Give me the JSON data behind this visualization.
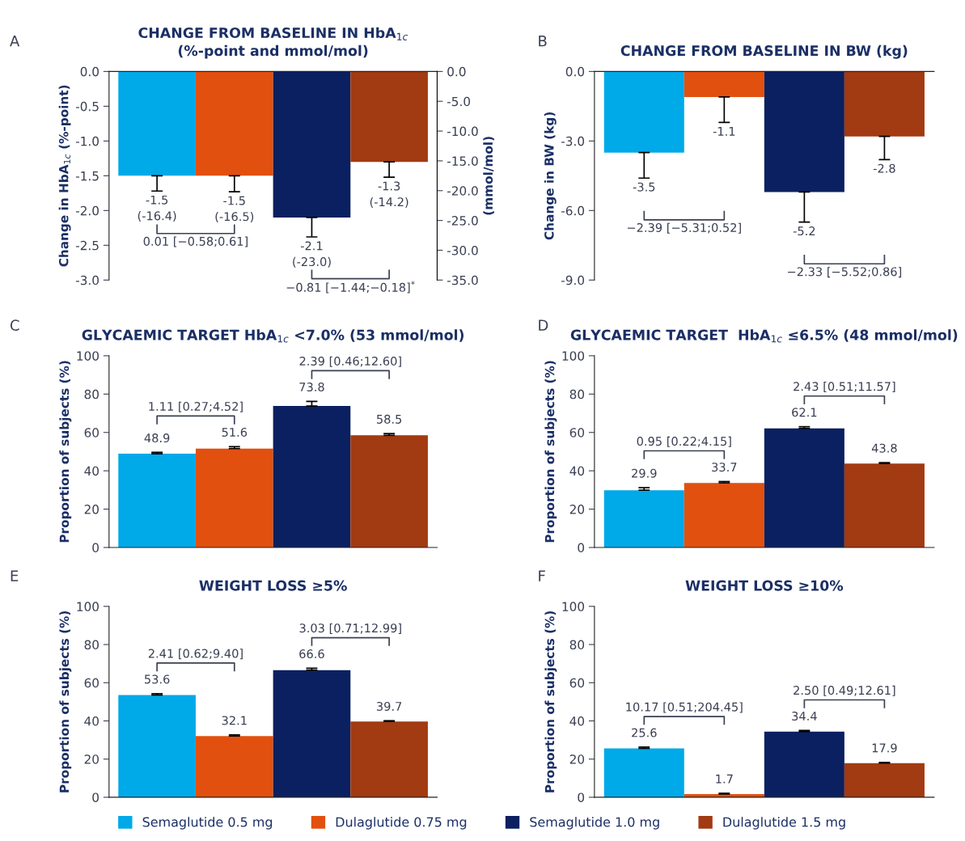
{
  "chart_data": [
    {
      "type": "bar",
      "title": "CHANGE FROM BASELINE IN HbA$_{1c}$\n(%-point and mmol/mol)",
      "ylabel": "Change in HbA$_{1c}$ (%-point)",
      "y2label": "(mmol/mol)",
      "categories": [
        null
      ],
      "series": [
        {
          "name": "Semaglutide 0.5 mg",
          "color": "#00a9e8",
          "values": [
            -1.5
          ],
          "errors": [
            [
              -1.72,
              -1.5
            ]
          ],
          "value_labels": [
            "-1.5\n(-16.4)"
          ]
        },
        {
          "name": "Dulaglutide 0.75 mg",
          "color": "#e2500f",
          "values": [
            -1.5
          ],
          "errors": [
            [
              -1.73,
              -1.5
            ]
          ],
          "value_labels": [
            "-1.5\n(-16.5)"
          ]
        },
        {
          "name": "Semaglutide 1.0 mg",
          "color": "#0b2060",
          "values": [
            -2.1
          ],
          "errors": [
            [
              -2.38,
              -2.1
            ]
          ],
          "value_labels": [
            "-2.1\n(-23.0)"
          ]
        },
        {
          "name": "Dulaglutide 1.5 mg",
          "color": "#a23a12",
          "values": [
            -1.3
          ],
          "errors": [
            [
              -1.52,
              -1.3
            ]
          ],
          "value_labels": [
            "-1.3\n(-14.2)"
          ]
        }
      ],
      "ylim": [
        -3,
        0
      ],
      "yticks": [
        {
          "value": 0,
          "label": "0.0"
        },
        -0.5,
        {
          "value": -1,
          "label": "-1.0"
        },
        -1.5,
        {
          "value": -2,
          "label": "-2.0"
        },
        -2.5,
        {
          "value": -3,
          "label": "-3.0"
        }
      ],
      "y2lim": [
        -35,
        0
      ],
      "y2ticks": [
        {
          "value": 0,
          "label": "0.0"
        },
        {
          "value": -5,
          "label": "-5.0"
        },
        {
          "value": -10,
          "label": "-10.0"
        },
        {
          "value": -15,
          "label": "-15.0"
        },
        {
          "value": -20,
          "label": "-20.0"
        },
        {
          "value": -25,
          "label": "-25.0"
        },
        {
          "value": -30,
          "label": "-30.0"
        },
        {
          "value": -35,
          "label": "-35.0"
        }
      ],
      "annotations": [
        "A",
        "0.01 [−0.58;0.61]",
        "−0.81 [−1.44;−0.18]$^{*}$"
      ],
      "legend": "bottom"
    },
    {
      "type": "bar",
      "title": "CHANGE FROM BASELINE IN BW (kg)",
      "ylabel": "Change in BW (kg)",
      "categories": [
        null
      ],
      "series": [
        {
          "color": "#00a9e8",
          "values": [
            -3.5
          ],
          "errors": [
            [
              -4.6,
              -3.5
            ]
          ]
        },
        {
          "color": "#e2500f",
          "values": [
            -1.1
          ],
          "errors": [
            [
              -2.2,
              -1.1
            ]
          ]
        },
        {
          "color": "#0b2060",
          "values": [
            -5.2
          ],
          "errors": [
            [
              -6.5,
              -5.2
            ]
          ]
        },
        {
          "color": "#a23a12",
          "values": [
            -2.8
          ],
          "errors": [
            [
              -3.8,
              -2.8
            ]
          ]
        }
      ],
      "ylim": [
        -9,
        0
      ],
      "yticks": [
        {
          "value": 0,
          "label": "0.0"
        },
        {
          "value": -3,
          "label": "-3.0"
        },
        {
          "value": -6,
          "label": "-6.0"
        },
        {
          "value": -9,
          "label": "-9.0"
        }
      ],
      "annotations": [
        "B",
        "−2.39 [−5.31;0.52]",
        "−2.33 [−5.52;0.86]"
      ],
      "data_labels": true
    },
    {
      "type": "bar",
      "title": "GLYCAEMIC TARGET HbA$_{1c}$ <7.0% (53 mmol/mol)",
      "ylabel": "Proportion of subjects (%)",
      "categories": [
        null
      ],
      "series": [
        {
          "color": "#00a9e8",
          "values": [
            48.9
          ],
          "errors": [
            [
              48.9,
              49.6
            ]
          ]
        },
        {
          "color": "#e2500f",
          "values": [
            51.6
          ],
          "errors": [
            [
              51.6,
              52.6
            ]
          ]
        },
        {
          "color": "#0b2060",
          "values": [
            73.8
          ],
          "errors": [
            [
              73.8,
              76.2
            ]
          ]
        },
        {
          "color": "#a23a12",
          "values": [
            58.5
          ],
          "errors": [
            [
              58.5,
              59.4
            ]
          ]
        }
      ],
      "ylim": [
        0,
        100
      ],
      "yticks": [
        0,
        20,
        40,
        60,
        80,
        100
      ],
      "annotations": [
        "C",
        "1.11 [0.27;4.52]",
        "2.39 [0.46;12.60]"
      ],
      "data_labels": true
    },
    {
      "type": "bar",
      "title": "GLYCAEMIC TARGET  HbA$_{1c}$ ≤6.5% (48 mmol/mol)",
      "ylabel": "Proportion of subjects (%)",
      "categories": [
        null
      ],
      "series": [
        {
          "color": "#00a9e8",
          "values": [
            29.9
          ],
          "errors": [
            [
              29.9,
              31.2
            ]
          ]
        },
        {
          "color": "#e2500f",
          "values": [
            33.7
          ],
          "errors": [
            [
              33.7,
              34.4
            ]
          ]
        },
        {
          "color": "#0b2060",
          "values": [
            62.1
          ],
          "errors": [
            [
              62.1,
              63.0
            ]
          ]
        },
        {
          "color": "#a23a12",
          "values": [
            43.8
          ],
          "errors": [
            [
              43.8,
              44.3
            ]
          ]
        }
      ],
      "ylim": [
        0,
        100
      ],
      "yticks": [
        0,
        20,
        40,
        60,
        80,
        100
      ],
      "annotations": [
        "D",
        "0.95 [0.22;4.15]",
        "2.43 [0.51;11.57]"
      ],
      "data_labels": true
    },
    {
      "type": "bar",
      "title": "WEIGHT LOSS ≥5%",
      "ylabel": "Proportion of subjects (%)",
      "categories": [
        null
      ],
      "series": [
        {
          "color": "#00a9e8",
          "values": [
            53.6
          ],
          "errors": [
            [
              53.6,
              54.3
            ]
          ]
        },
        {
          "color": "#e2500f",
          "values": [
            32.1
          ],
          "errors": [
            [
              32.1,
              32.7
            ]
          ]
        },
        {
          "color": "#0b2060",
          "values": [
            66.6
          ],
          "errors": [
            [
              66.6,
              67.6
            ]
          ]
        },
        {
          "color": "#a23a12",
          "values": [
            39.7
          ],
          "errors": [
            [
              39.7,
              40.1
            ]
          ]
        }
      ],
      "ylim": [
        0,
        100
      ],
      "yticks": [
        0,
        20,
        40,
        60,
        80,
        100
      ],
      "annotations": [
        "E",
        "2.41 [0.62;9.40]",
        "3.03 [0.71;12.99]"
      ],
      "data_labels": true
    },
    {
      "type": "bar",
      "title": "WEIGHT LOSS ≥10%",
      "ylabel": "Proportion of subjects (%)",
      "categories": [
        null
      ],
      "series": [
        {
          "color": "#00a9e8",
          "values": [
            25.6
          ],
          "errors": [
            [
              25.6,
              26.3
            ]
          ]
        },
        {
          "color": "#e2500f",
          "values": [
            1.7
          ],
          "errors": [
            [
              1.7,
              2.1
            ]
          ]
        },
        {
          "color": "#0b2060",
          "values": [
            34.4
          ],
          "errors": [
            [
              34.4,
              35.0
            ]
          ]
        },
        {
          "color": "#a23a12",
          "values": [
            17.9
          ],
          "errors": [
            [
              17.9,
              18.3
            ]
          ]
        }
      ],
      "ylim": [
        0,
        100
      ],
      "yticks": [
        0,
        20,
        40,
        60,
        80,
        100
      ],
      "annotations": [
        "F",
        "10.17 [0.51;204.45]",
        "2.50 [0.49;12.61]"
      ],
      "data_labels": true
    }
  ]
}
